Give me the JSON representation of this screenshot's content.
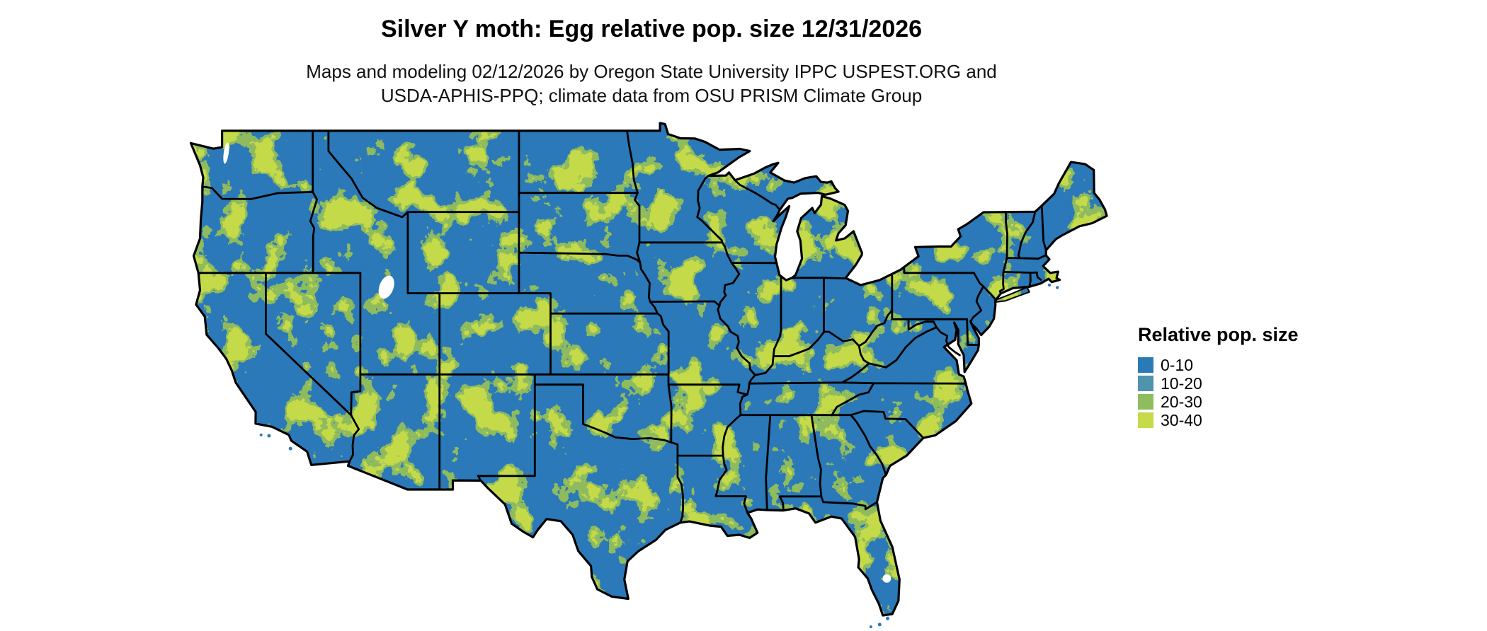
{
  "title": "Silver Y moth: Egg relative pop. size 12/31/2026",
  "subtitle_line1": "Maps and modeling 02/12/2026 by Oregon State University IPPC USPEST.ORG and",
  "subtitle_line2": "USDA-APHIS-PPQ; climate data from OSU PRISM Climate Group",
  "legend": {
    "title": "Relative pop. size",
    "items": [
      {
        "label": "0-10",
        "color": "#2b7ab8"
      },
      {
        "label": "10-20",
        "color": "#4f93ad"
      },
      {
        "label": "20-30",
        "color": "#8fbc5f"
      },
      {
        "label": "30-40",
        "color": "#c6da4a"
      }
    ]
  },
  "map": {
    "region_label": "Continental United States",
    "border_color": "#000000",
    "water_color": "#ffffff"
  }
}
